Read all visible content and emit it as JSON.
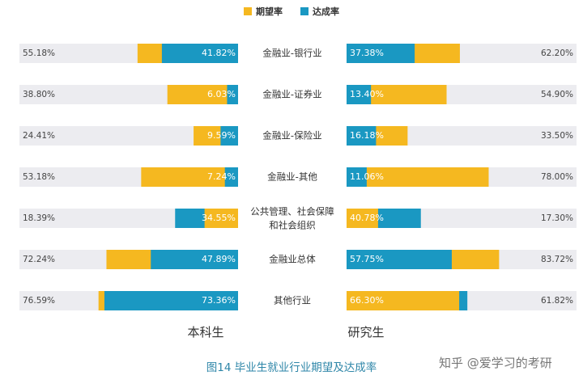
{
  "chart_data": {
    "type": "bar",
    "legend": {
      "placement": "top-center",
      "items": [
        {
          "name": "期望率",
          "color": "#f5b820"
        },
        {
          "name": "达成率",
          "color": "#1a98c2"
        }
      ]
    },
    "categories": [
      "金融业-银行业",
      "金融业-证券业",
      "金融业-保险业",
      "金融业-其他",
      "公共管理、社会保障和社会组织",
      "金融业总体",
      "其他行业"
    ],
    "groups": [
      {
        "name": "本科生",
        "direction": "left",
        "series": [
          {
            "name": "期望率",
            "values": [
              55.18,
              38.8,
              24.41,
              53.18,
              18.39,
              72.24,
              76.59
            ]
          },
          {
            "name": "达成率",
            "values": [
              41.82,
              6.03,
              9.59,
              7.24,
              34.55,
              47.89,
              73.36
            ]
          }
        ],
        "labels": {
          "expect": [
            "55.18%",
            "38.80%",
            "24.41%",
            "53.18%",
            "18.39%",
            "72.24%",
            "76.59%"
          ],
          "achieve": [
            "41.82%",
            "6.03%",
            "9.59%",
            "7.24%",
            "34.55%",
            "47.89%",
            "73.36%"
          ]
        }
      },
      {
        "name": "研究生",
        "direction": "right",
        "series": [
          {
            "name": "期望率",
            "values": [
              62.2,
              54.9,
              33.5,
              78.0,
              17.3,
              83.72,
              61.82
            ]
          },
          {
            "name": "达成率",
            "values": [
              37.38,
              13.4,
              16.18,
              11.06,
              40.78,
              57.75,
              66.3
            ]
          }
        ],
        "labels": {
          "expect": [
            "62.20%",
            "54.90%",
            "33.50%",
            "78.00%",
            "17.30%",
            "83.72%",
            "61.82%"
          ],
          "achieve": [
            "37.38%",
            "13.40%",
            "16.18%",
            "11.06%",
            "40.78%",
            "57.75%",
            "66.30%"
          ]
        }
      }
    ],
    "xlim": [
      0,
      100
    ],
    "colors": {
      "expect": "#f5b820",
      "achieve": "#1a98c2",
      "track": "#ececf0",
      "caption": "#2e86a8"
    }
  },
  "group_labels": {
    "left": "本科生",
    "right": "研究生"
  },
  "caption": "图14 毕业生就业行业期望及达成率",
  "watermark": "知乎 @爱学习的考研"
}
